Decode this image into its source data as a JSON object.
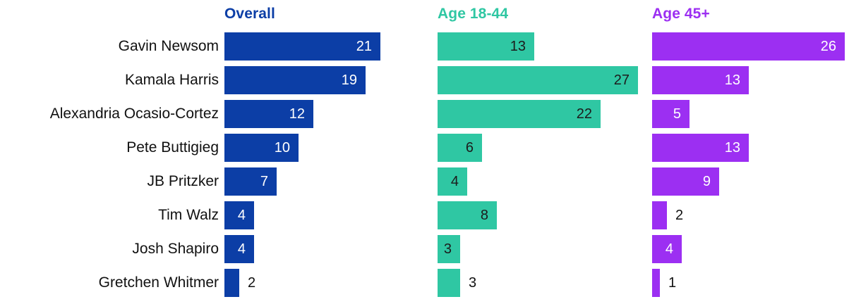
{
  "chart_data": {
    "type": "bar",
    "orientation": "horizontal",
    "title": "",
    "xlabel": "",
    "ylabel": "",
    "xlim": [
      0,
      27.5
    ],
    "grid": false,
    "legend_position": "column-headers",
    "value_labels": true,
    "background_color": "#ffffff",
    "category_label_color": "#111111",
    "outside_value_color": "#111111",
    "categories": [
      "Gavin Newsom",
      "Kamala Harris",
      "Alexandria Ocasio-Cortez",
      "Pete Buttigieg",
      "JB Pritzker",
      "Tim Walz",
      "Josh Shapiro",
      "Gretchen Whitmer"
    ],
    "series": [
      {
        "name": "Overall",
        "color": "#0c3ea6",
        "value_text_color": "#ffffff",
        "values": [
          21,
          19,
          12,
          10,
          7,
          4,
          4,
          2
        ],
        "label_inside": [
          true,
          true,
          true,
          true,
          true,
          true,
          true,
          false
        ]
      },
      {
        "name": "Age 18-44",
        "color": "#2fc7a3",
        "value_text_color": "#1c1c1c",
        "values": [
          13,
          27,
          22,
          6,
          4,
          8,
          3,
          3
        ],
        "label_inside": [
          true,
          true,
          true,
          true,
          true,
          true,
          true,
          false
        ]
      },
      {
        "name": "Age 45+",
        "color": "#9c2ff2",
        "value_text_color": "#ffffff",
        "values": [
          26,
          13,
          5,
          13,
          9,
          2,
          4,
          1
        ],
        "label_inside": [
          true,
          true,
          true,
          true,
          true,
          false,
          true,
          false
        ]
      }
    ]
  }
}
